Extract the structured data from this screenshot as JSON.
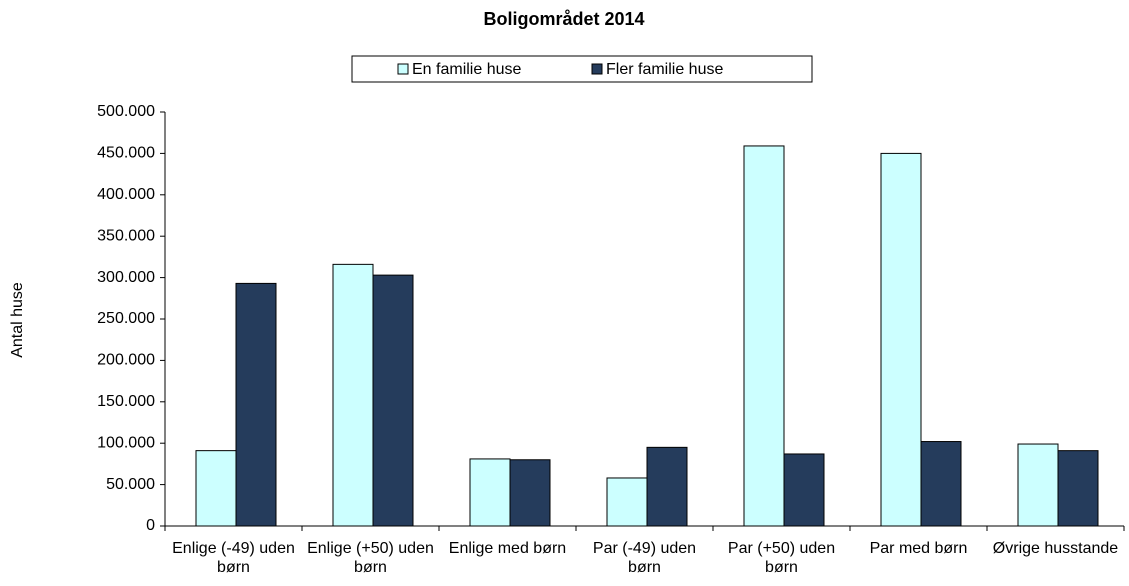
{
  "chart_data": {
    "type": "bar",
    "title": "Boligområdet 2014",
    "y_label": "Antal huse",
    "categories": [
      "Enlige (-49) uden børn",
      "Enlige (+50) uden børn",
      "Enlige med børn",
      "Par (-49) uden børn",
      "Par (+50) uden børn",
      "Par med børn",
      "Øvrige husstande"
    ],
    "series": [
      {
        "name": "En familie huse",
        "color": "#ccffff",
        "values": [
          91000,
          316000,
          81000,
          58000,
          459000,
          450000,
          99000
        ]
      },
      {
        "name": "Fler familie huse",
        "color": "#253c5c",
        "values": [
          293000,
          303000,
          80000,
          95000,
          87000,
          102000,
          91000
        ]
      }
    ],
    "ylim": [
      0,
      500000
    ],
    "yticks": [
      0,
      {
        "value": 50000,
        "label": "50.000"
      },
      {
        "value": 100000,
        "label": "100.000"
      },
      {
        "value": 150000,
        "label": "150.000"
      },
      {
        "value": 200000,
        "label": "200.000"
      },
      {
        "value": 250000,
        "label": "250.000"
      },
      {
        "value": 300000,
        "label": "300.000"
      },
      {
        "value": 350000,
        "label": "350.000"
      },
      {
        "value": 400000,
        "label": "400.000"
      },
      {
        "value": 450000,
        "label": "450.000"
      },
      {
        "value": 500000,
        "label": "500.000"
      }
    ],
    "grid": false,
    "legend": "top"
  }
}
